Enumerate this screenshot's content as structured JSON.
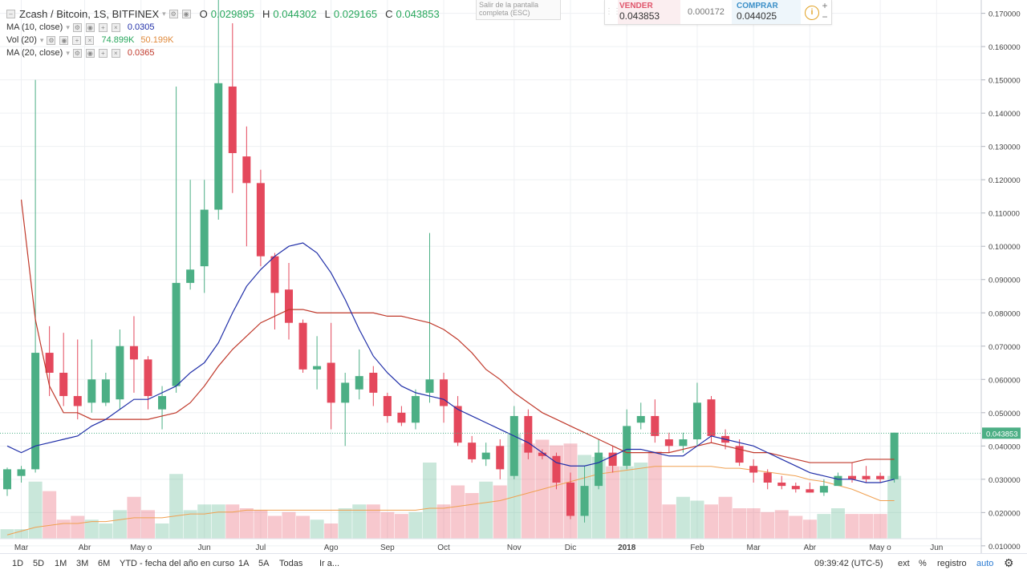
{
  "header": {
    "symbol": "Zcash / Bitcoin, 1S, BITFINEX",
    "o_label": "O",
    "o_value": "0.029895",
    "h_label": "H",
    "h_value": "0.044302",
    "l_label": "L",
    "l_value": "0.029165",
    "c_label": "C",
    "c_value": "0.043853"
  },
  "legends": {
    "ma10": {
      "label": "MA (10, close)",
      "value": "0.0305"
    },
    "vol": {
      "label": "Vol (20)",
      "value1": "74.899K",
      "value2": "50.199K"
    },
    "ma20": {
      "label": "MA (20, close)",
      "value": "0.0365"
    }
  },
  "fullscreen_tip": "Salir de la pantalla completa (ESC)",
  "trade": {
    "sell_label": "VENDER",
    "sell_price": "0.043853",
    "spread": "0.000172",
    "buy_label": "COMPRAR",
    "buy_price": "0.044025",
    "zoom_in": "+",
    "zoom_out": "−",
    "info_icon": "info-icon"
  },
  "toolbar": {
    "ranges": [
      "1D",
      "5D",
      "1M",
      "3M",
      "6M",
      "YTD - fecha del año en curso",
      "1A",
      "5A",
      "Todas"
    ],
    "goto": "Ir a...",
    "time": "09:39:42 (UTC-5)",
    "ext": "ext",
    "percent": "%",
    "log": "registro",
    "auto": "auto"
  },
  "colors": {
    "up": "#4caf85",
    "down": "#e4485c",
    "ma10": "#1f2ea8",
    "ma20": "#c0392b",
    "vol_ma": "#f0a050"
  },
  "chart_data": {
    "type": "candlestick",
    "yaxis_ticks": [
      "0.170000",
      "0.160000",
      "0.150000",
      "0.140000",
      "0.130000",
      "0.120000",
      "0.110000",
      "0.100000",
      "0.090000",
      "0.080000",
      "0.070000",
      "0.060000",
      "0.050000",
      "0.040000",
      "0.030000",
      "0.020000",
      "0.010000"
    ],
    "ylim": [
      0.0078,
      0.174
    ],
    "xaxis_ticks": [
      {
        "label": "Mar",
        "i": 1
      },
      {
        "label": "Abr",
        "i": 5.5
      },
      {
        "label": "May o",
        "i": 9.5
      },
      {
        "label": "Jun",
        "i": 14
      },
      {
        "label": "Jul",
        "i": 18
      },
      {
        "label": "Ago",
        "i": 23
      },
      {
        "label": "Sep",
        "i": 27
      },
      {
        "label": "Oct",
        "i": 31
      },
      {
        "label": "Nov",
        "i": 36
      },
      {
        "label": "Dic",
        "i": 40
      },
      {
        "label": "2018",
        "i": 44
      },
      {
        "label": "Feb",
        "i": 49
      },
      {
        "label": "Mar",
        "i": 53
      },
      {
        "label": "Abr",
        "i": 57
      },
      {
        "label": "May o",
        "i": 62
      },
      {
        "label": "Jun",
        "i": 66
      }
    ],
    "last_price_label": "0.043853",
    "candles": [
      [
        0.027,
        0.033,
        0.025,
        0.0335
      ],
      [
        0.031,
        0.033,
        0.029,
        0.034
      ],
      [
        0.033,
        0.068,
        0.032,
        0.15
      ],
      [
        0.068,
        0.062,
        0.055,
        0.076
      ],
      [
        0.062,
        0.055,
        0.052,
        0.074
      ],
      [
        0.055,
        0.052,
        0.048,
        0.072
      ],
      [
        0.053,
        0.06,
        0.05,
        0.072
      ],
      [
        0.053,
        0.06,
        0.052,
        0.062
      ],
      [
        0.054,
        0.07,
        0.051,
        0.075
      ],
      [
        0.07,
        0.066,
        0.056,
        0.079
      ],
      [
        0.066,
        0.055,
        0.051,
        0.067
      ],
      [
        0.051,
        0.055,
        0.045,
        0.058
      ],
      [
        0.058,
        0.089,
        0.056,
        0.148
      ],
      [
        0.089,
        0.093,
        0.087,
        0.12
      ],
      [
        0.094,
        0.111,
        0.086,
        0.12
      ],
      [
        0.111,
        0.149,
        0.108,
        0.175
      ],
      [
        0.148,
        0.128,
        0.116,
        0.167
      ],
      [
        0.127,
        0.119,
        0.1,
        0.136
      ],
      [
        0.119,
        0.097,
        0.094,
        0.123
      ],
      [
        0.097,
        0.086,
        0.075,
        0.098
      ],
      [
        0.087,
        0.077,
        0.072,
        0.095
      ],
      [
        0.077,
        0.063,
        0.062,
        0.078
      ],
      [
        0.063,
        0.064,
        0.057,
        0.073
      ],
      [
        0.065,
        0.053,
        0.045,
        0.077
      ],
      [
        0.053,
        0.059,
        0.04,
        0.062
      ],
      [
        0.057,
        0.061,
        0.054,
        0.069
      ],
      [
        0.062,
        0.056,
        0.052,
        0.064
      ],
      [
        0.055,
        0.049,
        0.047,
        0.056
      ],
      [
        0.05,
        0.047,
        0.046,
        0.052
      ],
      [
        0.047,
        0.055,
        0.045,
        0.057
      ],
      [
        0.056,
        0.06,
        0.053,
        0.104
      ],
      [
        0.06,
        0.052,
        0.047,
        0.062
      ],
      [
        0.052,
        0.041,
        0.04,
        0.055
      ],
      [
        0.041,
        0.036,
        0.035,
        0.043
      ],
      [
        0.036,
        0.038,
        0.034,
        0.041
      ],
      [
        0.04,
        0.033,
        0.03,
        0.042
      ],
      [
        0.031,
        0.049,
        0.03,
        0.052
      ],
      [
        0.049,
        0.038,
        0.036,
        0.051
      ],
      [
        0.038,
        0.037,
        0.036,
        0.039
      ],
      [
        0.037,
        0.029,
        0.027,
        0.038
      ],
      [
        0.029,
        0.019,
        0.018,
        0.032
      ],
      [
        0.019,
        0.028,
        0.017,
        0.034
      ],
      [
        0.028,
        0.038,
        0.027,
        0.042
      ],
      [
        0.038,
        0.034,
        0.032,
        0.04
      ],
      [
        0.034,
        0.046,
        0.033,
        0.051
      ],
      [
        0.047,
        0.049,
        0.045,
        0.053
      ],
      [
        0.049,
        0.043,
        0.041,
        0.054
      ],
      [
        0.042,
        0.04,
        0.038,
        0.044
      ],
      [
        0.04,
        0.042,
        0.038,
        0.044
      ],
      [
        0.042,
        0.053,
        0.04,
        0.059
      ],
      [
        0.054,
        0.043,
        0.041,
        0.055
      ],
      [
        0.043,
        0.041,
        0.039,
        0.045
      ],
      [
        0.04,
        0.035,
        0.034,
        0.042
      ],
      [
        0.034,
        0.032,
        0.029,
        0.036
      ],
      [
        0.032,
        0.029,
        0.027,
        0.033
      ],
      [
        0.029,
        0.028,
        0.027,
        0.031
      ],
      [
        0.028,
        0.027,
        0.026,
        0.029
      ],
      [
        0.027,
        0.026,
        0.026,
        0.029
      ],
      [
        0.026,
        0.028,
        0.025,
        0.03
      ],
      [
        0.028,
        0.031,
        0.028,
        0.032
      ],
      [
        0.031,
        0.03,
        0.029,
        0.035
      ],
      [
        0.031,
        0.03,
        0.029,
        0.034
      ],
      [
        0.031,
        0.03,
        0.029,
        0.032
      ],
      [
        0.03,
        0.044,
        0.029,
        0.044
      ]
    ],
    "volume": [
      5,
      5,
      30,
      25,
      10,
      12,
      10,
      8,
      15,
      22,
      15,
      8,
      34,
      15,
      18,
      18,
      18,
      16,
      15,
      12,
      14,
      12,
      10,
      8,
      16,
      18,
      18,
      14,
      13,
      14,
      40,
      18,
      28,
      24,
      30,
      28,
      55,
      50,
      52,
      49,
      50,
      44,
      43,
      38,
      38,
      40,
      46,
      18,
      22,
      20,
      18,
      22,
      16,
      16,
      14,
      15,
      12,
      10,
      13,
      16,
      13,
      13,
      13,
      33
    ],
    "ma10": [
      0.04,
      0.038,
      0.04,
      0.041,
      0.042,
      0.043,
      0.046,
      0.048,
      0.051,
      0.054,
      0.054,
      0.056,
      0.058,
      0.062,
      0.065,
      0.071,
      0.08,
      0.088,
      0.093,
      0.097,
      0.1,
      0.101,
      0.098,
      0.092,
      0.084,
      0.075,
      0.067,
      0.062,
      0.058,
      0.056,
      0.055,
      0.054,
      0.051,
      0.049,
      0.047,
      0.045,
      0.043,
      0.041,
      0.038,
      0.035,
      0.034,
      0.034,
      0.035,
      0.037,
      0.039,
      0.039,
      0.038,
      0.037,
      0.037,
      0.04,
      0.043,
      0.042,
      0.041,
      0.04,
      0.038,
      0.036,
      0.034,
      0.032,
      0.031,
      0.03,
      0.03,
      0.029,
      0.029,
      0.03
    ],
    "ma20": [
      null,
      0.114,
      0.078,
      0.058,
      0.05,
      0.05,
      0.048,
      0.048,
      0.048,
      0.048,
      0.048,
      0.049,
      0.05,
      0.053,
      0.058,
      0.064,
      0.069,
      0.073,
      0.077,
      0.079,
      0.081,
      0.081,
      0.08,
      0.08,
      0.08,
      0.08,
      0.08,
      0.079,
      0.079,
      0.078,
      0.077,
      0.075,
      0.072,
      0.068,
      0.063,
      0.06,
      0.056,
      0.053,
      0.05,
      0.048,
      0.046,
      0.044,
      0.042,
      0.04,
      0.038,
      0.038,
      0.038,
      0.038,
      0.039,
      0.04,
      0.041,
      0.04,
      0.039,
      0.038,
      0.038,
      0.037,
      0.036,
      0.035,
      0.035,
      0.035,
      0.035,
      0.036,
      0.036,
      0.036
    ],
    "vol_ma": [
      2,
      4,
      6,
      7,
      8,
      8,
      9,
      9,
      10,
      11,
      11,
      11,
      12,
      13,
      13,
      14,
      14,
      15,
      15,
      15,
      15,
      15,
      15,
      15,
      15,
      15,
      15,
      15,
      15,
      15,
      16,
      16,
      17,
      18,
      19,
      20,
      22,
      24,
      26,
      28,
      30,
      32,
      34,
      35,
      36,
      37,
      38,
      38,
      38,
      38,
      38,
      37,
      37,
      36,
      35,
      34,
      33,
      31,
      30,
      28,
      26,
      23,
      20,
      20
    ]
  }
}
